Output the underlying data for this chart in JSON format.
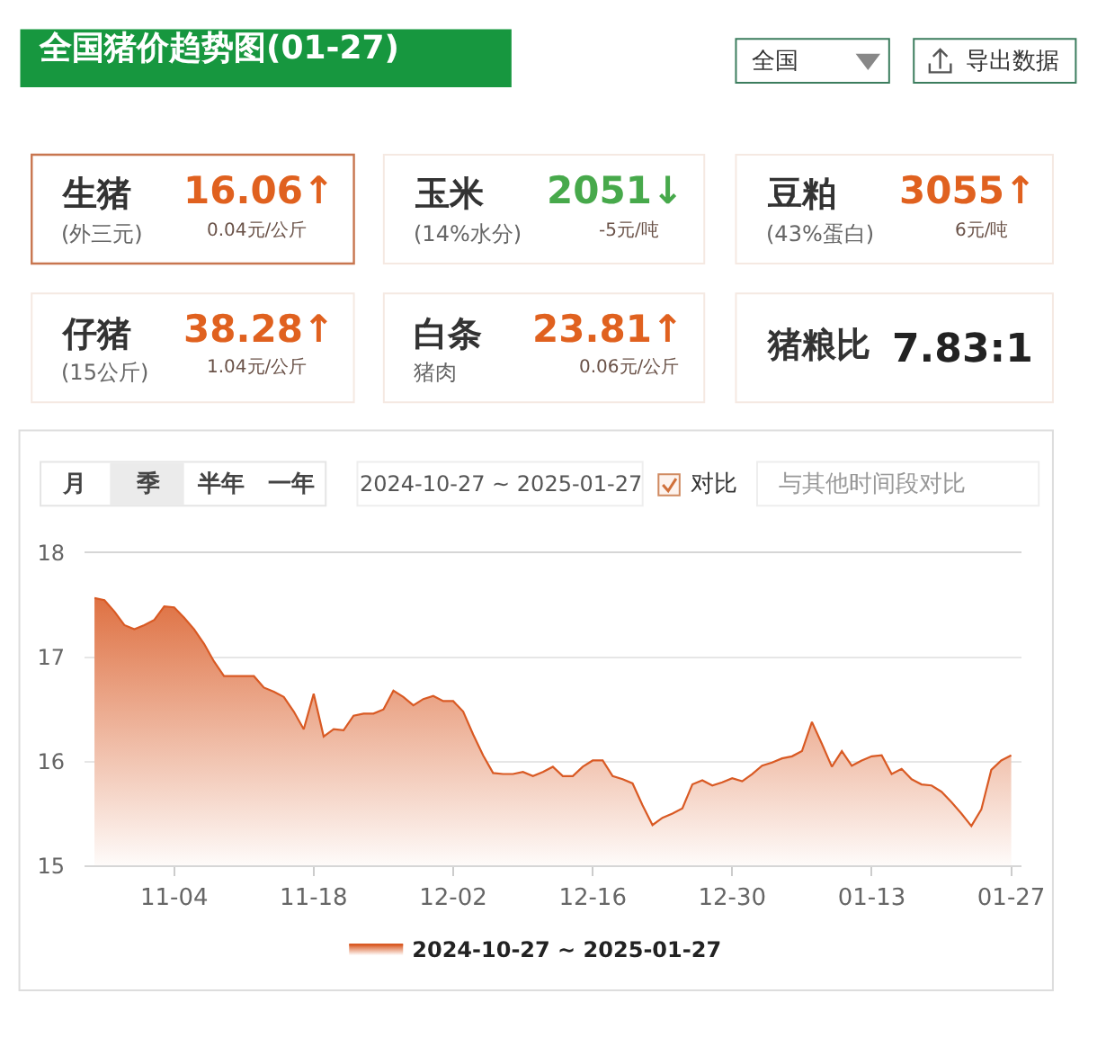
{
  "chart_data": {
    "type": "area",
    "title": "全国猪价趋势图(01-27)",
    "annotations": [
      "全国",
      "导出数据",
      "生猪",
      "(外三元)",
      "16.06↑",
      "0.04元/公斤",
      "玉米",
      "(14%水分)",
      "2051↓",
      "-5元/吨",
      "豆粕",
      "(43%蛋白)",
      "3055↑",
      "6元/吨",
      "仔猪",
      "(15公斤)",
      "38.28↑",
      "1.04元/公斤",
      "白条",
      "猪肉",
      "23.81↑",
      "0.06元/公斤",
      "猪粮比",
      "7.83:1",
      "月",
      "季",
      "半年",
      "一年",
      "2024-10-27 ~ 2025-01-27",
      "对比",
      "与其他时间段对比"
    ],
    "x": [
      "2024-10-27",
      "2024-10-28",
      "2024-10-29",
      "2024-10-30",
      "2024-10-31",
      "2024-11-01",
      "2024-11-02",
      "2024-11-03",
      "2024-11-04",
      "2024-11-05",
      "2024-11-06",
      "2024-11-07",
      "2024-11-08",
      "2024-11-09",
      "2024-11-10",
      "2024-11-11",
      "2024-11-12",
      "2024-11-13",
      "2024-11-14",
      "2024-11-15",
      "2024-11-16",
      "2024-11-17",
      "2024-11-18",
      "2024-11-19",
      "2024-11-20",
      "2024-11-21",
      "2024-11-22",
      "2024-11-23",
      "2024-11-24",
      "2024-11-25",
      "2024-11-26",
      "2024-11-27",
      "2024-11-28",
      "2024-11-29",
      "2024-11-30",
      "2024-12-01",
      "2024-12-02",
      "2024-12-03",
      "2024-12-04",
      "2024-12-05",
      "2024-12-06",
      "2024-12-07",
      "2024-12-08",
      "2024-12-09",
      "2024-12-10",
      "2024-12-11",
      "2024-12-12",
      "2024-12-13",
      "2024-12-14",
      "2024-12-15",
      "2024-12-16",
      "2024-12-17",
      "2024-12-18",
      "2024-12-19",
      "2024-12-20",
      "2024-12-21",
      "2024-12-22",
      "2024-12-23",
      "2024-12-24",
      "2024-12-25",
      "2024-12-26",
      "2024-12-27",
      "2024-12-28",
      "2024-12-29",
      "2024-12-30",
      "2024-12-31",
      "2025-01-01",
      "2025-01-02",
      "2025-01-03",
      "2025-01-04",
      "2025-01-05",
      "2025-01-06",
      "2025-01-07",
      "2025-01-08",
      "2025-01-09",
      "2025-01-10",
      "2025-01-11",
      "2025-01-12",
      "2025-01-13",
      "2025-01-14",
      "2025-01-15",
      "2025-01-16",
      "2025-01-17",
      "2025-01-18",
      "2025-01-19",
      "2025-01-20",
      "2025-01-21",
      "2025-01-22",
      "2025-01-23",
      "2025-01-24",
      "2025-01-25",
      "2025-01-26",
      "2025-01-27"
    ],
    "series": [
      {
        "name": "2024-10-27 ~ 2025-01-27",
        "color": "#d95a24",
        "values": [
          17.57,
          17.55,
          17.44,
          17.31,
          17.27,
          17.31,
          17.36,
          17.49,
          17.48,
          17.38,
          17.27,
          17.13,
          16.96,
          16.82,
          16.82,
          16.82,
          16.82,
          16.71,
          16.67,
          16.62,
          16.48,
          16.31,
          16.65,
          16.24,
          16.31,
          16.3,
          16.44,
          16.46,
          16.46,
          16.5,
          16.68,
          16.62,
          16.54,
          16.6,
          16.63,
          16.58,
          16.58,
          16.48,
          16.26,
          16.06,
          15.89,
          15.88,
          15.88,
          15.9,
          15.86,
          15.9,
          15.95,
          15.86,
          15.86,
          15.95,
          16.01,
          16.01,
          15.86,
          15.83,
          15.79,
          15.58,
          15.39,
          15.46,
          15.5,
          15.55,
          15.78,
          15.82,
          15.77,
          15.8,
          15.84,
          15.81,
          15.88,
          15.96,
          15.99,
          16.03,
          16.05,
          16.1,
          16.38,
          16.17,
          15.95,
          16.1,
          15.96,
          16.01,
          16.05,
          16.06,
          15.88,
          15.93,
          15.83,
          15.78,
          15.77,
          15.71,
          15.61,
          15.5,
          15.38,
          15.54,
          15.92,
          16.01,
          16.06
        ]
      }
    ],
    "xlim": [
      "2024-10-26",
      "2025-01-28"
    ],
    "xticks": [
      {
        "value": "2024-11-04",
        "label": "11-04"
      },
      {
        "value": "2024-11-18",
        "label": "11-18"
      },
      {
        "value": "2024-12-02",
        "label": "12-02"
      },
      {
        "value": "2024-12-16",
        "label": "12-16"
      },
      {
        "value": "2024-12-30",
        "label": "12-30"
      },
      {
        "value": "2025-01-13",
        "label": "01-13"
      },
      {
        "value": "2025-01-27",
        "label": "01-27"
      }
    ],
    "ylim": [
      15,
      18
    ],
    "yticks": [
      15,
      16,
      17,
      18
    ],
    "grid": "y",
    "legend": "bottom"
  }
}
